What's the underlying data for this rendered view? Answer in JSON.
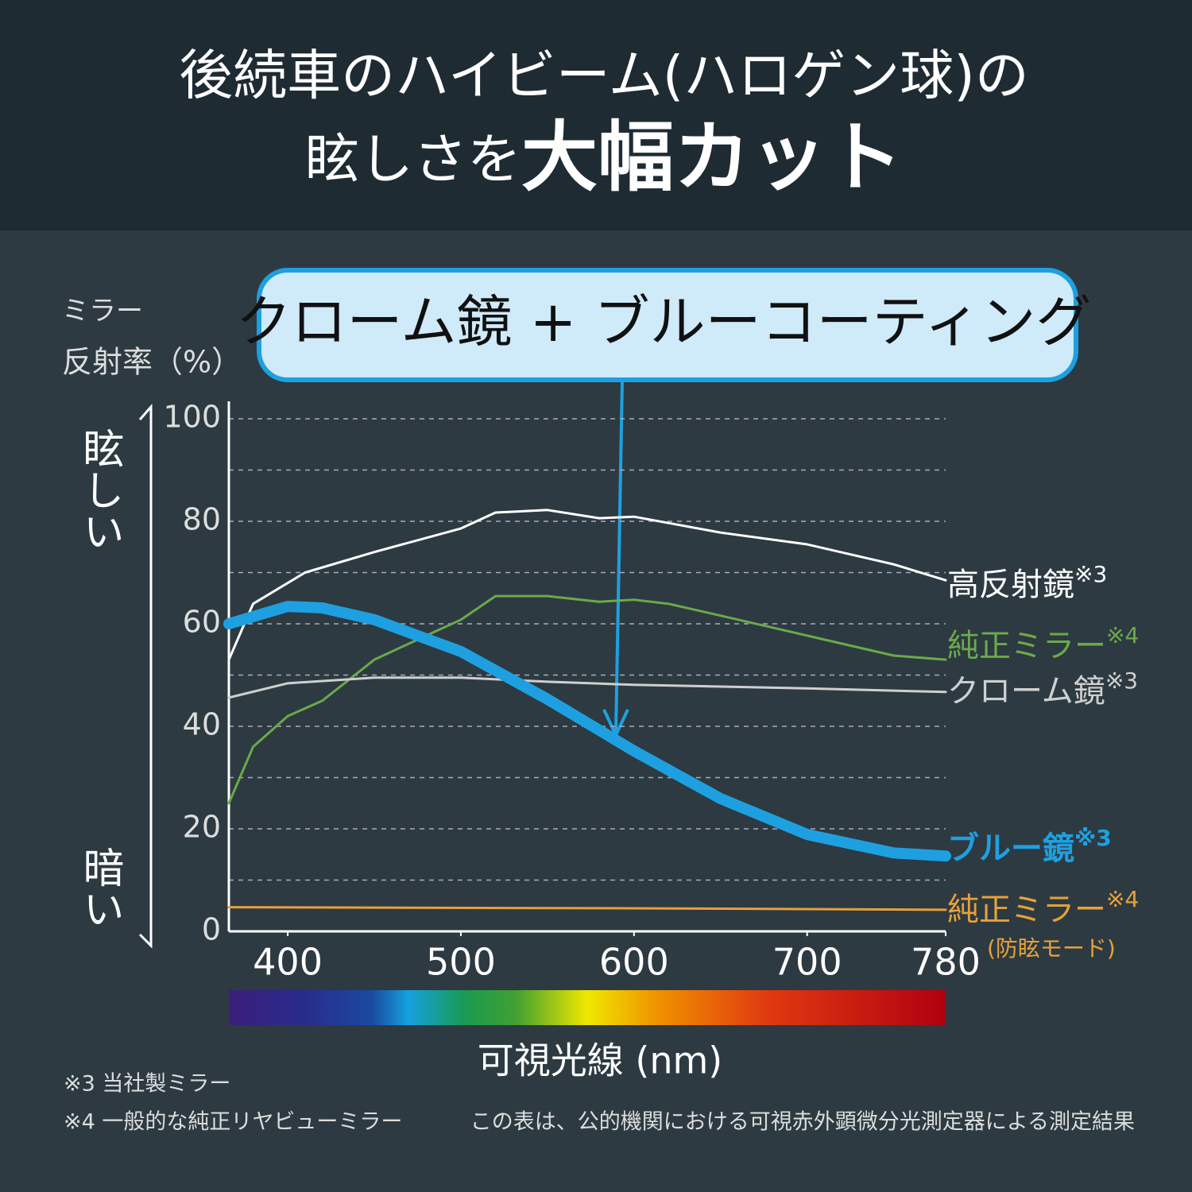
{
  "chart_data": {
    "type": "line",
    "title": "後続車のハイビーム(ハロゲン球)の",
    "title_line2": "眩しさを",
    "title_emphasis": "大幅カット",
    "callout": "クローム鏡 + ブルーコーティング",
    "y_label": [
      "ミラー",
      "反射率（%）"
    ],
    "y_scale_top": "眩しい",
    "y_scale_bottom": "暗い",
    "x_label": "可視光線 (nm)",
    "xlim": [
      366,
      780
    ],
    "xticks": [
      400,
      500,
      600,
      700,
      780
    ],
    "ylim": [
      0,
      100
    ],
    "yticks": [
      0,
      20,
      40,
      60,
      80,
      100
    ],
    "minor_yticks": [
      10,
      30,
      50,
      70,
      90
    ],
    "grid": true,
    "series": [
      {
        "name": "高反射鏡",
        "note": "※3",
        "color": "#ffffff",
        "width": 3,
        "x": [
          366,
          380,
          410,
          450,
          500,
          520,
          550,
          580,
          600,
          650,
          700,
          750,
          780
        ],
        "values": [
          53,
          63.9,
          70,
          74,
          78.6,
          81.7,
          82.2,
          80.6,
          80.9,
          77.8,
          75.5,
          71.6,
          68.5
        ]
      },
      {
        "name": "純正ミラー",
        "note": "※4",
        "color": "#6aaa4a",
        "width": 3,
        "x": [
          366,
          380,
          400,
          420,
          450,
          480,
          500,
          520,
          550,
          580,
          600,
          620,
          650,
          700,
          750,
          780
        ],
        "values": [
          25,
          36,
          42,
          45,
          53,
          57.7,
          60.8,
          65.4,
          65.4,
          64.3,
          64.7,
          63.9,
          61.6,
          57.7,
          53.8,
          53
        ]
      },
      {
        "name": "クローム鏡",
        "note": "※3",
        "color": "#cfcfcf",
        "width": 3,
        "x": [
          366,
          400,
          450,
          500,
          550,
          600,
          700,
          780
        ],
        "values": [
          45.6,
          48.4,
          49.5,
          49.5,
          48.7,
          48.1,
          47.4,
          46.7
        ]
      },
      {
        "name": "ブルー鏡",
        "note": "※3",
        "color": "#1ea0e0",
        "width": 14,
        "x": [
          366,
          400,
          420,
          450,
          500,
          550,
          600,
          650,
          700,
          750,
          780
        ],
        "values": [
          60,
          63.4,
          63.1,
          60.8,
          54.6,
          45.3,
          35.2,
          25.9,
          18.9,
          15.3,
          14.7
        ]
      },
      {
        "name": "純正ミラー",
        "note": "※4",
        "sub": "(防眩モード)",
        "color": "#e6a13a",
        "width": 3,
        "x": [
          366,
          600,
          780
        ],
        "values": [
          4.7,
          4.5,
          4.2
        ]
      }
    ],
    "footnotes": [
      "※3 当社製ミラー",
      "※4 一般的な純正リヤビューミラー"
    ],
    "source_note": "この表は、公的機関における可視赤外顕微分光測定器による測定結果"
  }
}
